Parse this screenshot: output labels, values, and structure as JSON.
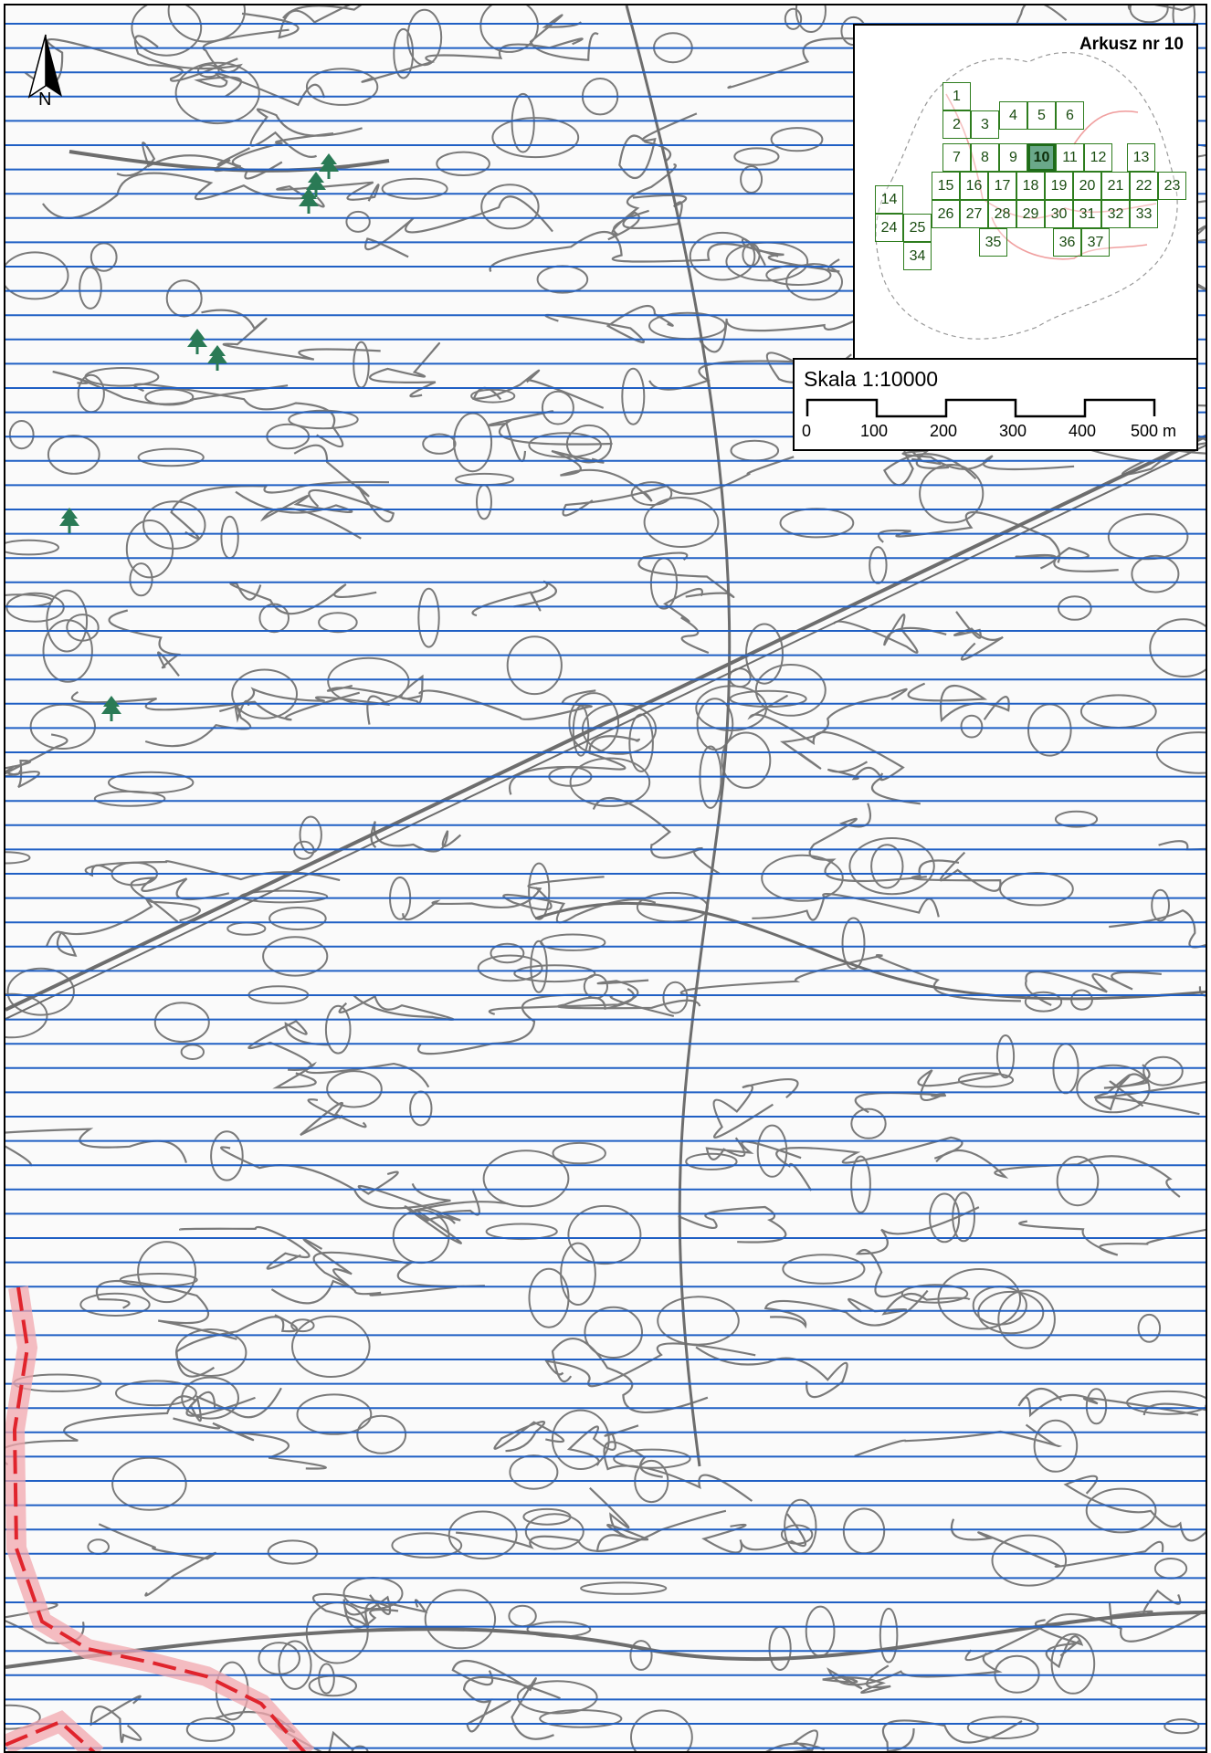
{
  "north": {
    "label": "N",
    "icon": "north-arrow-icon"
  },
  "index_map": {
    "title": "Arkusz nr 10",
    "current_sheet": "10",
    "sheets": [
      "1",
      "2",
      "3",
      "4",
      "5",
      "6",
      "7",
      "8",
      "9",
      "10",
      "11",
      "12",
      "13",
      "14",
      "15",
      "16",
      "17",
      "18",
      "19",
      "20",
      "21",
      "22",
      "23",
      "24",
      "25",
      "26",
      "27",
      "28",
      "29",
      "30",
      "31",
      "32",
      "33",
      "34",
      "35",
      "36",
      "37"
    ]
  },
  "scale": {
    "title": "Skala 1:10000",
    "ticks": [
      "0",
      "100",
      "200",
      "300",
      "400",
      "500 m"
    ]
  },
  "map": {
    "hatch_color": "#1f5fc4",
    "contour_color": "#7a7a7a",
    "boundary_color": "#e0242c",
    "tree_color": "#2a7a55",
    "trees": [
      {
        "icon": "tree-icon"
      },
      {
        "icon": "tree-icon"
      },
      {
        "icon": "tree-icon"
      },
      {
        "icon": "tree-icon"
      },
      {
        "icon": "tree-icon"
      },
      {
        "icon": "tree-icon"
      }
    ]
  }
}
